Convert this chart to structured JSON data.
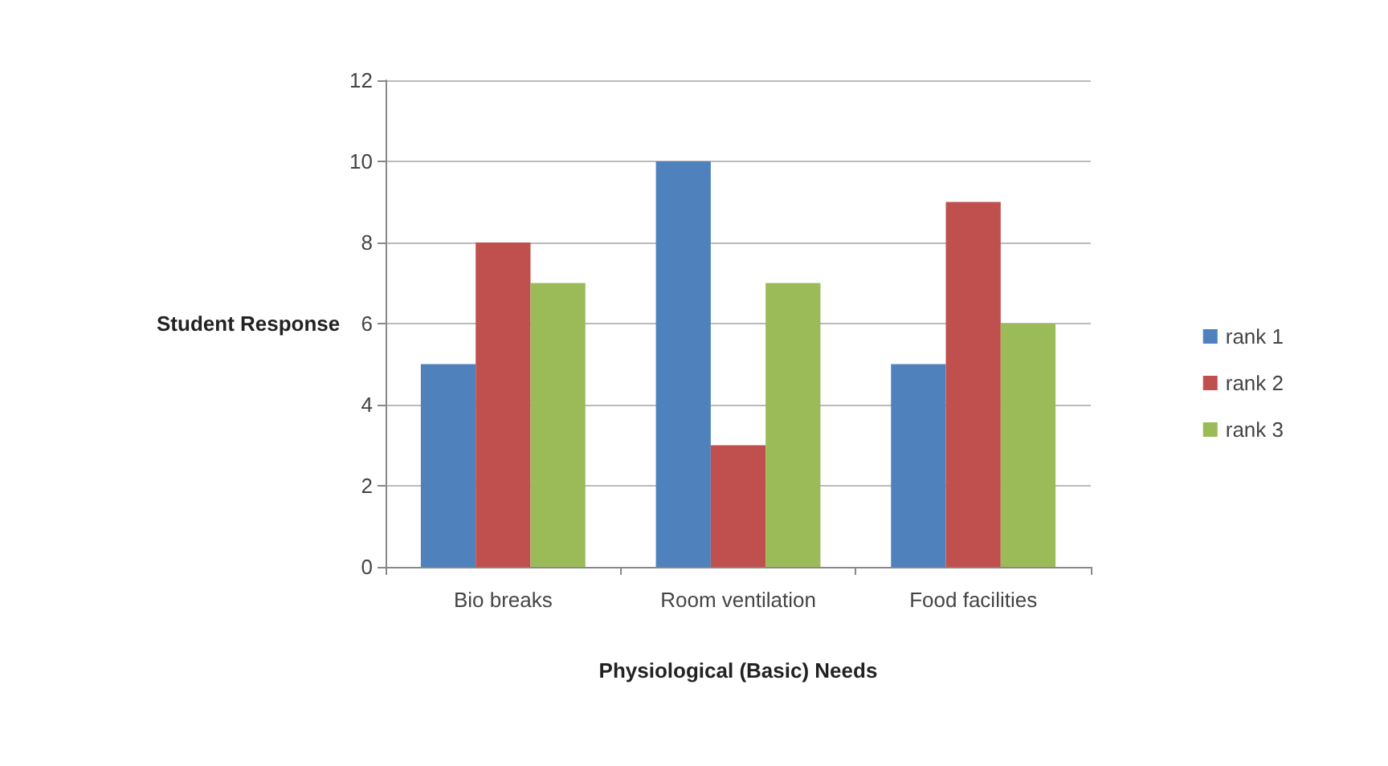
{
  "chart_data": {
    "type": "bar",
    "xlabel": "Physiological (Basic) Needs",
    "ylabel": "Student Response",
    "categories": [
      "Bio breaks",
      "Room ventilation",
      "Food facilities"
    ],
    "series": [
      {
        "name": "rank 1",
        "color": "#4f81bd",
        "values": [
          5,
          10,
          5
        ]
      },
      {
        "name": "rank 2",
        "color": "#c0504d",
        "values": [
          8,
          3,
          9
        ]
      },
      {
        "name": "rank 3",
        "color": "#9bbb59",
        "values": [
          7,
          7,
          6
        ]
      }
    ],
    "ylim": [
      0,
      12
    ],
    "yticks": [
      0,
      2,
      4,
      6,
      8,
      10,
      12
    ],
    "grid": "y",
    "legend": "right"
  }
}
